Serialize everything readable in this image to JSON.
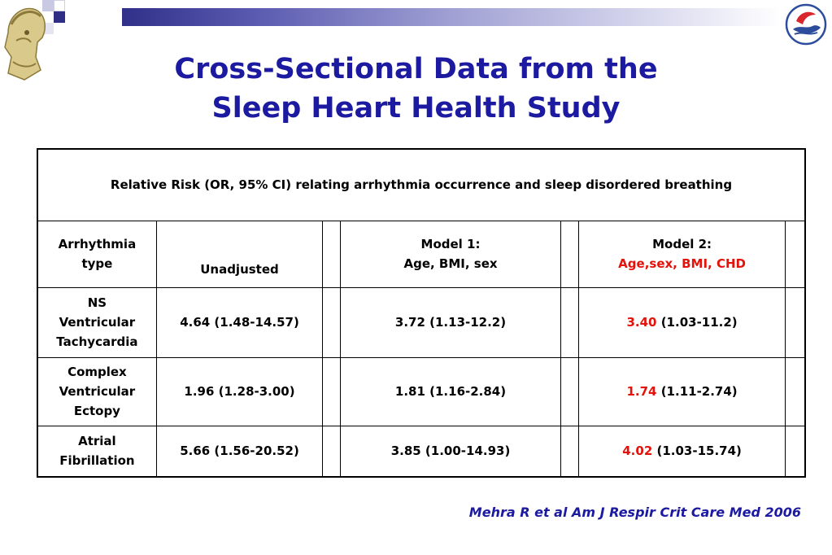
{
  "title": {
    "line1": "Cross-Sectional Data from the",
    "line2": "Sleep Heart Health Study"
  },
  "table": {
    "header": "Relative Risk (OR, 95% CI) relating arrhythmia occurrence and sleep disordered breathing",
    "columns": {
      "type_line1": "Arrhythmia",
      "type_line2": "type",
      "unadjusted": "Unadjusted",
      "model1_line1": "Model 1:",
      "model1_line2": "Age, BMI, sex",
      "model2_line1": "Model 2:",
      "model2_line2": "Age,sex, BMI, CHD"
    },
    "rows": [
      {
        "type_lines": [
          "NS",
          "Ventricular",
          "Tachycardia"
        ],
        "unadjusted": "4.64 (1.48-14.57)",
        "model1": "3.72 (1.13-12.2)",
        "model2_value": "3.40",
        "model2_ci": " (1.03-11.2)"
      },
      {
        "type_lines": [
          "Complex",
          "Ventricular",
          "Ectopy"
        ],
        "unadjusted": "1.96 (1.28-3.00)",
        "model1": "1.81 (1.16-2.84)",
        "model2_value": "1.74",
        "model2_ci": " (1.11-2.74)"
      },
      {
        "type_lines": [
          "Atrial",
          "Fibrillation"
        ],
        "unadjusted": "5.66 (1.56-20.52)",
        "model1": "3.85 (1.00-14.93)",
        "model2_value": "4.02",
        "model2_ci": " (1.03-15.74)"
      }
    ]
  },
  "citation": "Mehra R et al Am J Respir Crit Care Med 2006",
  "colors": {
    "title": "#1b1aa0",
    "highlight": "#e3120b"
  }
}
